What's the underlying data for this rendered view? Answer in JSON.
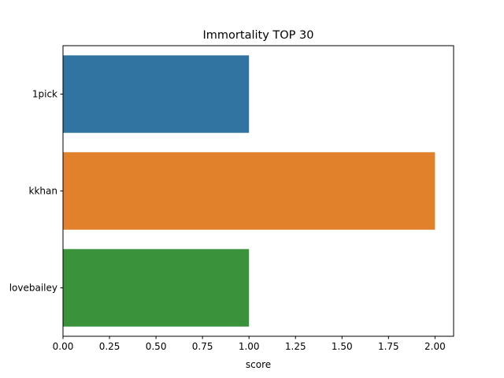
{
  "chart_data": {
    "type": "bar",
    "orientation": "horizontal",
    "title": "Immortality TOP 30",
    "xlabel": "score",
    "ylabel": "",
    "categories": [
      "1pick",
      "kkhan",
      "lovebailey"
    ],
    "values": [
      1,
      2,
      1
    ],
    "colors": [
      "#3274a1",
      "#e1812c",
      "#3a923a"
    ],
    "xlim": [
      0,
      2.1
    ],
    "xticks": [
      0.0,
      0.25,
      0.5,
      0.75,
      1.0,
      1.25,
      1.5,
      1.75,
      2.0
    ],
    "xtick_labels": [
      "0.00",
      "0.25",
      "0.50",
      "0.75",
      "1.00",
      "1.25",
      "1.50",
      "1.75",
      "2.00"
    ],
    "grid": false,
    "legend": "none"
  }
}
